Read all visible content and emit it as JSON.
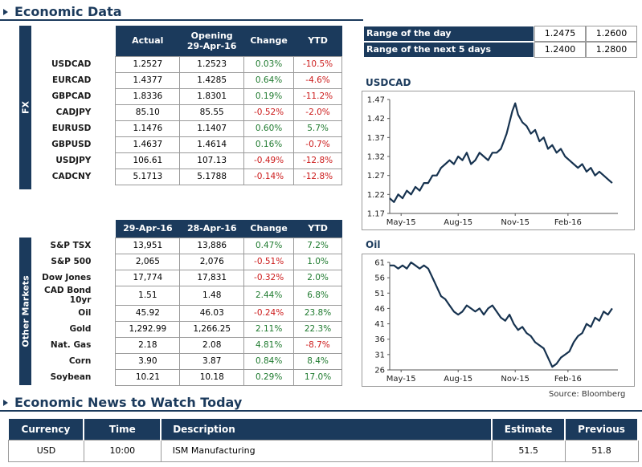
{
  "headings": {
    "economic_data": "Economic Data",
    "news": "Economic News to Watch Today"
  },
  "fx": {
    "band_label": "FX",
    "headers": [
      "Actual",
      "Opening\n29-Apr-16",
      "Change",
      "YTD"
    ],
    "rows": [
      {
        "name": "USDCAD",
        "actual": "1.2527",
        "opening": "1.2523",
        "change": "0.03%",
        "ytd": "-10.5%"
      },
      {
        "name": "EURCAD",
        "actual": "1.4377",
        "opening": "1.4285",
        "change": "0.64%",
        "ytd": "-4.6%"
      },
      {
        "name": "GBPCAD",
        "actual": "1.8336",
        "opening": "1.8301",
        "change": "0.19%",
        "ytd": "-11.2%"
      },
      {
        "name": "CADJPY",
        "actual": "85.10",
        "opening": "85.55",
        "change": "-0.52%",
        "ytd": "-2.0%"
      },
      {
        "name": "EURUSD",
        "actual": "1.1476",
        "opening": "1.1407",
        "change": "0.60%",
        "ytd": "5.7%"
      },
      {
        "name": "GBPUSD",
        "actual": "1.4637",
        "opening": "1.4614",
        "change": "0.16%",
        "ytd": "-0.7%"
      },
      {
        "name": "USDJPY",
        "actual": "106.61",
        "opening": "107.13",
        "change": "-0.49%",
        "ytd": "-12.8%"
      },
      {
        "name": "CADCNY",
        "actual": "5.1713",
        "opening": "5.1788",
        "change": "-0.14%",
        "ytd": "-12.8%"
      }
    ]
  },
  "markets": {
    "band_label": "Other Markets",
    "headers": [
      "29-Apr-16",
      "28-Apr-16",
      "Change",
      "YTD"
    ],
    "rows": [
      {
        "name": "S&P TSX",
        "a": "13,951",
        "b": "13,886",
        "change": "0.47%",
        "ytd": "7.2%"
      },
      {
        "name": "S&P 500",
        "a": "2,065",
        "b": "2,076",
        "change": "-0.51%",
        "ytd": "1.0%"
      },
      {
        "name": "Dow Jones",
        "a": "17,774",
        "b": "17,831",
        "change": "-0.32%",
        "ytd": "2.0%"
      },
      {
        "name": "CAD Bond 10yr",
        "a": "1.51",
        "b": "1.48",
        "change": "2.44%",
        "ytd": "6.8%"
      },
      {
        "name": "Oil",
        "a": "45.92",
        "b": "46.03",
        "change": "-0.24%",
        "ytd": "23.8%"
      },
      {
        "name": "Gold",
        "a": "1,292.99",
        "b": "1,266.25",
        "change": "2.11%",
        "ytd": "22.3%"
      },
      {
        "name": "Nat. Gas",
        "a": "2.18",
        "b": "2.08",
        "change": "4.81%",
        "ytd": "-8.7%"
      },
      {
        "name": "Corn",
        "a": "3.90",
        "b": "3.87",
        "change": "0.84%",
        "ytd": "8.4%"
      },
      {
        "name": "Soybean",
        "a": "10.21",
        "b": "10.18",
        "change": "0.29%",
        "ytd": "17.0%"
      }
    ]
  },
  "range": {
    "day_label": "Range of the day",
    "day_low": "1.2475",
    "day_high": "1.2600",
    "five_label": "Range of the next 5 days",
    "five_low": "1.2400",
    "five_high": "1.2800"
  },
  "colors": {
    "navy": "#1b3a5c",
    "positive": "#1e7a2e",
    "negative": "#cc1a1a"
  },
  "source": "Source: Bloomberg",
  "news": {
    "headers": [
      "Currency",
      "Time",
      "Description",
      "Estimate",
      "Previous"
    ],
    "rows": [
      {
        "currency": "USD",
        "time": "10:00",
        "description": "ISM Manufacturing",
        "estimate": "51.5",
        "previous": "51.8"
      }
    ]
  },
  "chart_data": [
    {
      "type": "line",
      "title": "USDCAD",
      "x_ticks": [
        "May-15",
        "Aug-15",
        "Nov-15",
        "Feb-16"
      ],
      "y_ticks": [
        "1.47",
        "1.42",
        "1.37",
        "1.32",
        "1.27",
        "1.22",
        "1.17"
      ],
      "ylim": [
        1.17,
        1.47
      ],
      "x": [
        0,
        3,
        6,
        9,
        12,
        15,
        18,
        21,
        24,
        27,
        30,
        33,
        36,
        39,
        42,
        45,
        48,
        51,
        54,
        57,
        60,
        63,
        66,
        69,
        72,
        75,
        78,
        80,
        82,
        84,
        86,
        88,
        90,
        93,
        96,
        99,
        102,
        105,
        108,
        111,
        114,
        117,
        120,
        123,
        126,
        129,
        132,
        135,
        138,
        141,
        144,
        147,
        150,
        153,
        156
      ],
      "y": [
        1.21,
        1.2,
        1.22,
        1.21,
        1.23,
        1.22,
        1.24,
        1.23,
        1.25,
        1.25,
        1.27,
        1.27,
        1.29,
        1.3,
        1.31,
        1.3,
        1.32,
        1.31,
        1.33,
        1.3,
        1.31,
        1.33,
        1.32,
        1.31,
        1.33,
        1.33,
        1.34,
        1.36,
        1.38,
        1.41,
        1.44,
        1.46,
        1.43,
        1.41,
        1.4,
        1.38,
        1.39,
        1.36,
        1.37,
        1.34,
        1.35,
        1.33,
        1.34,
        1.32,
        1.31,
        1.3,
        1.29,
        1.3,
        1.28,
        1.29,
        1.27,
        1.28,
        1.27,
        1.26,
        1.25
      ],
      "x_range": [
        0,
        160
      ]
    },
    {
      "type": "line",
      "title": "Oil",
      "x_ticks": [
        "May-15",
        "Aug-15",
        "Nov-15",
        "Feb-16"
      ],
      "y_ticks": [
        "61",
        "56",
        "51",
        "46",
        "41",
        "36",
        "31",
        "26"
      ],
      "ylim": [
        26,
        61
      ],
      "x": [
        0,
        3,
        6,
        9,
        12,
        15,
        18,
        21,
        24,
        27,
        30,
        33,
        36,
        39,
        42,
        45,
        48,
        51,
        54,
        57,
        60,
        63,
        66,
        69,
        72,
        75,
        78,
        81,
        84,
        87,
        90,
        93,
        96,
        99,
        102,
        105,
        108,
        111,
        114,
        117,
        120,
        123,
        126,
        129,
        132,
        135,
        138,
        141,
        144,
        147,
        150,
        153,
        156
      ],
      "y": [
        60,
        60,
        59,
        60,
        59,
        61,
        60,
        59,
        60,
        59,
        56,
        53,
        50,
        49,
        47,
        45,
        44,
        45,
        47,
        46,
        45,
        46,
        44,
        46,
        47,
        45,
        43,
        42,
        44,
        41,
        39,
        40,
        38,
        37,
        35,
        34,
        33,
        30,
        27,
        28,
        30,
        31,
        32,
        35,
        37,
        38,
        41,
        40,
        43,
        42,
        45,
        44,
        46
      ],
      "x_range": [
        0,
        160
      ]
    }
  ]
}
